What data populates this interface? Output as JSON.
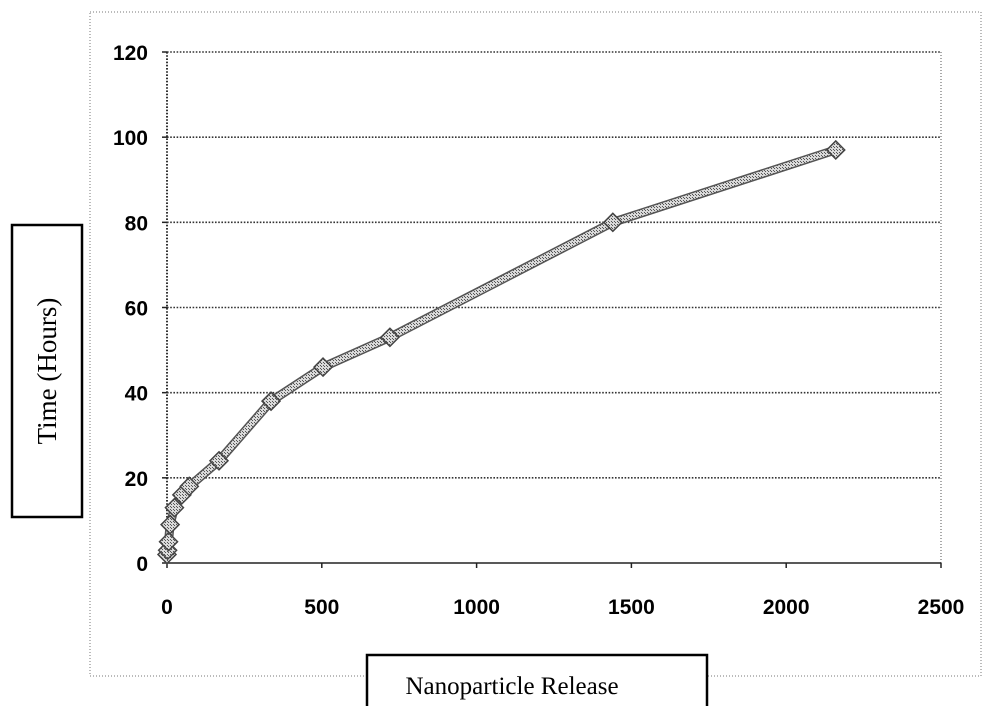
{
  "chart_data": {
    "type": "line",
    "title": "",
    "xlabel": "Nanoparticle Release",
    "ylabel": "Time (Hours)",
    "xlim": [
      0,
      2500
    ],
    "ylim": [
      0,
      120
    ],
    "x_ticks": [
      0,
      500,
      1000,
      1500,
      2000,
      2500
    ],
    "y_ticks": [
      0,
      20,
      40,
      60,
      80,
      100,
      120
    ],
    "grid": "horizontal-dotted",
    "marker": "diamond",
    "line_color": "#8a8a8a",
    "series": [
      {
        "x": [
          0,
          2,
          5,
          10,
          24,
          48,
          72,
          168,
          336,
          504,
          720,
          1440,
          2160
        ],
        "y": [
          2,
          3,
          5,
          9,
          13,
          16,
          18,
          24,
          38,
          46,
          53,
          80,
          97
        ]
      }
    ]
  }
}
